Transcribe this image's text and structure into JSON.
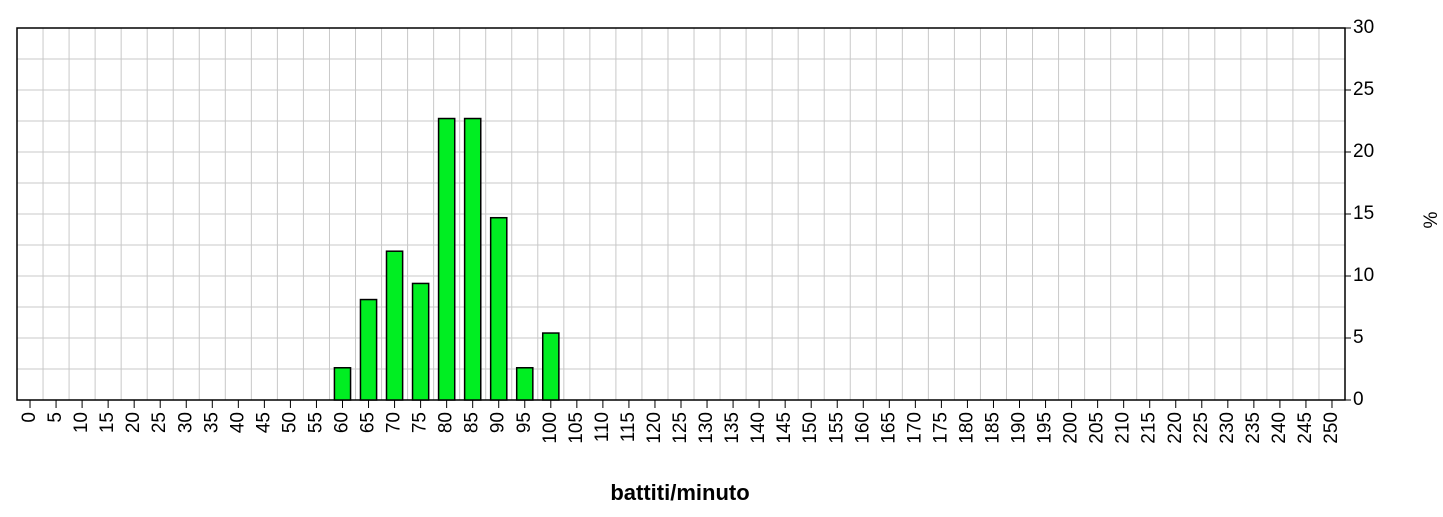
{
  "chart_data": {
    "type": "bar",
    "x_label": "battiti/minuto",
    "y_label": "%",
    "categories": [
      0,
      5,
      10,
      15,
      20,
      25,
      30,
      35,
      40,
      45,
      50,
      55,
      60,
      65,
      70,
      75,
      80,
      85,
      90,
      95,
      100,
      105,
      110,
      115,
      120,
      125,
      130,
      135,
      140,
      145,
      150,
      155,
      160,
      165,
      170,
      175,
      180,
      185,
      190,
      195,
      200,
      205,
      210,
      215,
      220,
      225,
      230,
      235,
      240,
      245,
      250
    ],
    "values": [
      0,
      0,
      0,
      0,
      0,
      0,
      0,
      0,
      0,
      0,
      0,
      0,
      2.6,
      8.1,
      12.0,
      9.4,
      22.7,
      22.7,
      14.7,
      2.6,
      5.4,
      0,
      0,
      0,
      0,
      0,
      0,
      0,
      0,
      0,
      0,
      0,
      0,
      0,
      0,
      0,
      0,
      0,
      0,
      0,
      0,
      0,
      0,
      0,
      0,
      0,
      0,
      0,
      0,
      0,
      0
    ],
    "color": "#00ee22",
    "ylim": [
      0,
      30
    ],
    "yticks": [
      0,
      5,
      10,
      15,
      20,
      25,
      30
    ],
    "grid": true,
    "y_axis_side": "right"
  }
}
